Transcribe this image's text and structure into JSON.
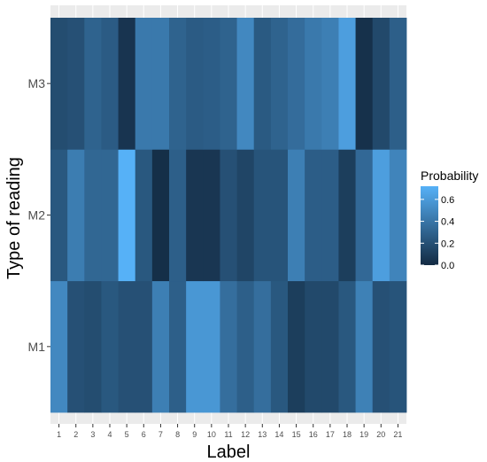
{
  "chart_data": {
    "type": "heatmap",
    "xlabel": "Label",
    "ylabel": "Type of reading",
    "x": [
      "1",
      "2",
      "3",
      "4",
      "5",
      "6",
      "7",
      "8",
      "9",
      "10",
      "11",
      "12",
      "13",
      "14",
      "15",
      "16",
      "17",
      "18",
      "19",
      "20",
      "21"
    ],
    "y": [
      "M1",
      "M2",
      "M3"
    ],
    "legend": {
      "title": "Probability",
      "placement": "right",
      "ticks": [
        "0.0",
        "0.2",
        "0.4",
        "0.6"
      ],
      "range": [
        0.0,
        0.72
      ],
      "low_color": "#132B43",
      "high_color": "#56B1F7"
    },
    "values": {
      "M3": [
        0.18,
        0.2,
        0.3,
        0.26,
        0.05,
        0.42,
        0.42,
        0.3,
        0.26,
        0.27,
        0.3,
        0.5,
        0.25,
        0.3,
        0.35,
        0.42,
        0.45,
        0.62,
        0.03,
        0.16,
        0.28
      ],
      "M2": [
        0.24,
        0.44,
        0.32,
        0.32,
        0.72,
        0.24,
        0.02,
        0.28,
        0.06,
        0.06,
        0.2,
        0.14,
        0.22,
        0.22,
        0.45,
        0.27,
        0.27,
        0.1,
        0.33,
        0.62,
        0.48
      ],
      "M1": [
        0.5,
        0.2,
        0.18,
        0.24,
        0.2,
        0.2,
        0.45,
        0.28,
        0.58,
        0.58,
        0.36,
        0.28,
        0.36,
        0.24,
        0.1,
        0.16,
        0.16,
        0.24,
        0.46,
        0.2,
        0.22
      ]
    },
    "grid": true
  }
}
